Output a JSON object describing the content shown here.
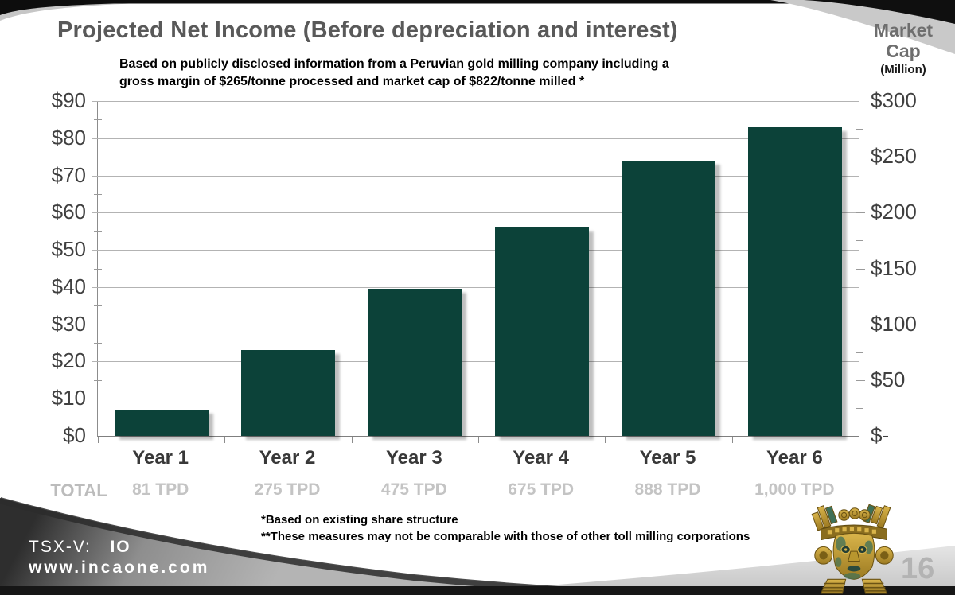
{
  "slide": {
    "title": "Projected Net Income (Before depreciation and interest)",
    "subtitle_line1": "Based on publicly disclosed information from a Peruvian gold milling company including a",
    "subtitle_line2": "gross margin of $265/tonne processed and market cap of $822/tonne milled *",
    "footnote1": "*Based on existing share structure",
    "footnote2": "**These measures may not be comparable with those of other toll milling corporations",
    "page_number": "16",
    "footer": {
      "ticker_label": "TSX-V:",
      "ticker_symbol": "IO",
      "website": "www.incaone.com"
    }
  },
  "right_axis_header": {
    "line1": "Market",
    "line2": "Cap",
    "line3": "(Million)"
  },
  "chart_data": {
    "type": "bar",
    "title": "Projected Net Income (Before depreciation and interest)",
    "categories": [
      "Year 1",
      "Year 2",
      "Year 3",
      "Year 4",
      "Year 5",
      "Year 6"
    ],
    "values": [
      7,
      23,
      39.5,
      56,
      74,
      83
    ],
    "bar_color": "#0c4239",
    "grid": true,
    "left_axis": {
      "ticks": [
        "$0",
        "$10",
        "$20",
        "$30",
        "$40",
        "$50",
        "$60",
        "$70",
        "$80",
        "$90"
      ],
      "min": 0,
      "max": 90,
      "step": 10
    },
    "right_axis": {
      "label": "Market Cap (Million)",
      "ticks": [
        "$-",
        "$50",
        "$100",
        "$150",
        "$200",
        "$250",
        "$300"
      ],
      "min": 0,
      "max": 300,
      "step": 50
    },
    "totals_row": {
      "label": "TOTAL",
      "values": [
        "81 TPD",
        "275 TPD",
        "475 TPD",
        "675 TPD",
        "888 TPD",
        "1,000 TPD"
      ]
    }
  },
  "colors": {
    "bar": "#0c4239",
    "title_gray": "#595959",
    "gridline": "#b3b3b3",
    "muted_gray": "#c4c4c4",
    "swoosh_dark": "#333333",
    "swoosh_silver": "#c9c9c9"
  }
}
